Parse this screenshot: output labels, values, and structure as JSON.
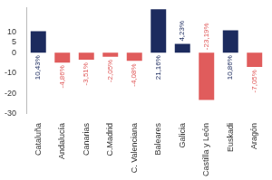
{
  "chart_data": {
    "type": "bar",
    "categories": [
      "Cataluña",
      "Andalucía",
      "Canarias",
      "C.Madrid",
      "C. Valenciana",
      "Baleares",
      "Galicia",
      "Castilla y León",
      "Euskadi",
      "Aragón"
    ],
    "values": [
      10.43,
      -4.86,
      -3.51,
      -2.05,
      -4.08,
      21.16,
      4.23,
      -23.19,
      10.86,
      -7.05
    ],
    "value_labels": [
      "10,43%",
      "-4,86%",
      "-3,51%",
      "-2,05%",
      "-4,08%",
      "21,16%",
      "4,23%",
      "-23,19%",
      "10,86%",
      "-7,05%"
    ],
    "colors": [
      "#1c2b5e",
      "#e05c5c",
      "#e05c5c",
      "#e05c5c",
      "#e05c5c",
      "#1c2b5e",
      "#1c2b5e",
      "#e05c5c",
      "#1c2b5e",
      "#e05c5c"
    ],
    "ylim": [
      -30,
      22
    ],
    "yticks": [
      10,
      5,
      0,
      -10,
      -20,
      -30
    ],
    "grid": false,
    "data_labels": true
  }
}
